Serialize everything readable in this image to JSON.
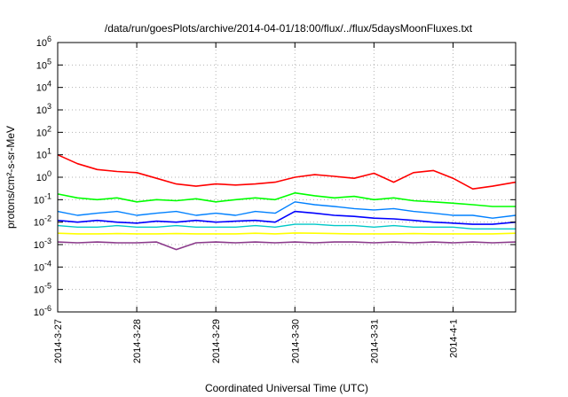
{
  "chart_data": {
    "type": "line",
    "title": "/data/run/goesPlots/archive/2014-04-01/18:00/flux/../flux/5daysMoonFluxes.txt",
    "xlabel": "Coordinated Universal Time (UTC)",
    "ylabel": "protons/cm²-s-sr-MeV",
    "yscale": "log",
    "ylim": [
      1e-06,
      1000000.0
    ],
    "xlim": [
      "2014-03-27T00:00",
      "2014-04-01T19:00"
    ],
    "grid": true,
    "legend": "none",
    "x_ticks": [
      "2014-3-27",
      "2014-3-28",
      "2014-3-29",
      "2014-3-30",
      "2014-3-31",
      "2014-4-1"
    ],
    "y_ticks": [
      {
        "base": "10",
        "exp": "-6"
      },
      {
        "base": "10",
        "exp": "-5"
      },
      {
        "base": "10",
        "exp": "-4"
      },
      {
        "base": "10",
        "exp": "-3"
      },
      {
        "base": "10",
        "exp": "-2"
      },
      {
        "base": "10",
        "exp": "-1"
      },
      {
        "base": "10",
        "exp": "0"
      },
      {
        "base": "10",
        "exp": "1"
      },
      {
        "base": "10",
        "exp": "2"
      },
      {
        "base": "10",
        "exp": "3"
      },
      {
        "base": "10",
        "exp": "4"
      },
      {
        "base": "10",
        "exp": "5"
      },
      {
        "base": "10",
        "exp": "6"
      }
    ],
    "series": [
      {
        "color": "#ff0000",
        "width": 1.6,
        "x": [
          "2014-03-27T00:00",
          "2014-03-27T06:00",
          "2014-03-27T12:00",
          "2014-03-27T18:00",
          "2014-03-28T00:00",
          "2014-03-28T06:00",
          "2014-03-28T12:00",
          "2014-03-28T18:00",
          "2014-03-29T00:00",
          "2014-03-29T06:00",
          "2014-03-29T12:00",
          "2014-03-29T18:00",
          "2014-03-30T00:00",
          "2014-03-30T06:00",
          "2014-03-30T12:00",
          "2014-03-30T18:00",
          "2014-03-31T00:00",
          "2014-03-31T06:00",
          "2014-03-31T12:00",
          "2014-03-31T18:00",
          "2014-04-01T00:00",
          "2014-04-01T06:00",
          "2014-04-01T12:00",
          "2014-04-01T19:00"
        ],
        "y": [
          10,
          4,
          2.2,
          1.8,
          1.6,
          0.9,
          0.5,
          0.4,
          0.5,
          0.45,
          0.5,
          0.6,
          1.0,
          1.3,
          1.1,
          0.9,
          1.5,
          0.6,
          1.6,
          2.0,
          0.9,
          0.3,
          0.4,
          0.6
        ]
      },
      {
        "color": "#00ff00",
        "width": 1.6,
        "x": [
          "2014-03-27T00:00",
          "2014-03-27T06:00",
          "2014-03-27T12:00",
          "2014-03-27T18:00",
          "2014-03-28T00:00",
          "2014-03-28T06:00",
          "2014-03-28T12:00",
          "2014-03-28T18:00",
          "2014-03-29T00:00",
          "2014-03-29T06:00",
          "2014-03-29T12:00",
          "2014-03-29T18:00",
          "2014-03-30T00:00",
          "2014-03-30T06:00",
          "2014-03-30T12:00",
          "2014-03-30T18:00",
          "2014-03-31T00:00",
          "2014-03-31T06:00",
          "2014-03-31T12:00",
          "2014-03-31T18:00",
          "2014-04-01T00:00",
          "2014-04-01T06:00",
          "2014-04-01T12:00",
          "2014-04-01T19:00"
        ],
        "y": [
          0.18,
          0.12,
          0.1,
          0.12,
          0.08,
          0.1,
          0.09,
          0.11,
          0.08,
          0.1,
          0.12,
          0.1,
          0.2,
          0.15,
          0.12,
          0.14,
          0.1,
          0.12,
          0.09,
          0.08,
          0.07,
          0.06,
          0.05,
          0.05
        ]
      },
      {
        "color": "#0080ff",
        "width": 1.4,
        "x": [
          "2014-03-27T00:00",
          "2014-03-27T06:00",
          "2014-03-27T12:00",
          "2014-03-27T18:00",
          "2014-03-28T00:00",
          "2014-03-28T06:00",
          "2014-03-28T12:00",
          "2014-03-28T18:00",
          "2014-03-29T00:00",
          "2014-03-29T06:00",
          "2014-03-29T12:00",
          "2014-03-29T18:00",
          "2014-03-30T00:00",
          "2014-03-30T06:00",
          "2014-03-30T12:00",
          "2014-03-30T18:00",
          "2014-03-31T00:00",
          "2014-03-31T06:00",
          "2014-03-31T12:00",
          "2014-03-31T18:00",
          "2014-04-01T00:00",
          "2014-04-01T06:00",
          "2014-04-01T12:00",
          "2014-04-01T19:00"
        ],
        "y": [
          0.03,
          0.02,
          0.025,
          0.03,
          0.02,
          0.025,
          0.03,
          0.02,
          0.025,
          0.02,
          0.03,
          0.025,
          0.08,
          0.06,
          0.05,
          0.04,
          0.035,
          0.04,
          0.03,
          0.025,
          0.02,
          0.02,
          0.015,
          0.02
        ]
      },
      {
        "color": "#0000ff",
        "width": 1.6,
        "x": [
          "2014-03-27T00:00",
          "2014-03-27T06:00",
          "2014-03-27T12:00",
          "2014-03-27T18:00",
          "2014-03-28T00:00",
          "2014-03-28T06:00",
          "2014-03-28T12:00",
          "2014-03-28T18:00",
          "2014-03-29T00:00",
          "2014-03-29T06:00",
          "2014-03-29T12:00",
          "2014-03-29T18:00",
          "2014-03-30T00:00",
          "2014-03-30T06:00",
          "2014-03-30T12:00",
          "2014-03-30T18:00",
          "2014-03-31T00:00",
          "2014-03-31T06:00",
          "2014-03-31T12:00",
          "2014-03-31T18:00",
          "2014-04-01T00:00",
          "2014-04-01T06:00",
          "2014-04-01T12:00",
          "2014-04-01T19:00"
        ],
        "y": [
          0.012,
          0.01,
          0.012,
          0.01,
          0.009,
          0.011,
          0.01,
          0.012,
          0.01,
          0.011,
          0.012,
          0.01,
          0.03,
          0.025,
          0.02,
          0.018,
          0.015,
          0.014,
          0.012,
          0.01,
          0.009,
          0.008,
          0.008,
          0.01
        ]
      },
      {
        "color": "#00c8c8",
        "width": 1.4,
        "x": [
          "2014-03-27T00:00",
          "2014-03-27T06:00",
          "2014-03-27T12:00",
          "2014-03-27T18:00",
          "2014-03-28T00:00",
          "2014-03-28T06:00",
          "2014-03-28T12:00",
          "2014-03-28T18:00",
          "2014-03-29T00:00",
          "2014-03-29T06:00",
          "2014-03-29T12:00",
          "2014-03-29T18:00",
          "2014-03-30T00:00",
          "2014-03-30T06:00",
          "2014-03-30T12:00",
          "2014-03-30T18:00",
          "2014-03-31T00:00",
          "2014-03-31T06:00",
          "2014-03-31T12:00",
          "2014-03-31T18:00",
          "2014-04-01T00:00",
          "2014-04-01T06:00",
          "2014-04-01T12:00",
          "2014-04-01T19:00"
        ],
        "y": [
          0.007,
          0.006,
          0.006,
          0.007,
          0.006,
          0.006,
          0.007,
          0.006,
          0.006,
          0.006,
          0.007,
          0.006,
          0.008,
          0.008,
          0.007,
          0.007,
          0.006,
          0.007,
          0.006,
          0.006,
          0.006,
          0.005,
          0.005,
          0.005
        ]
      },
      {
        "color": "#ffff00",
        "width": 1.6,
        "x": [
          "2014-03-27T00:00",
          "2014-03-27T06:00",
          "2014-03-27T12:00",
          "2014-03-27T18:00",
          "2014-03-28T00:00",
          "2014-03-28T06:00",
          "2014-03-28T12:00",
          "2014-03-28T18:00",
          "2014-03-29T00:00",
          "2014-03-29T06:00",
          "2014-03-29T12:00",
          "2014-03-29T18:00",
          "2014-03-30T00:00",
          "2014-03-30T06:00",
          "2014-03-30T12:00",
          "2014-03-30T18:00",
          "2014-03-31T00:00",
          "2014-03-31T06:00",
          "2014-03-31T12:00",
          "2014-03-31T18:00",
          "2014-04-01T00:00",
          "2014-04-01T06:00",
          "2014-04-01T12:00",
          "2014-04-01T19:00"
        ],
        "y": [
          0.0032,
          0.003,
          0.003,
          0.0031,
          0.003,
          0.003,
          0.0031,
          0.003,
          0.003,
          0.003,
          0.0032,
          0.003,
          0.0033,
          0.0032,
          0.0031,
          0.003,
          0.003,
          0.003,
          0.0031,
          0.003,
          0.003,
          0.003,
          0.003,
          0.0032
        ]
      },
      {
        "color": "#8b3a8b",
        "width": 1.6,
        "x": [
          "2014-03-27T00:00",
          "2014-03-27T06:00",
          "2014-03-27T12:00",
          "2014-03-27T18:00",
          "2014-03-28T00:00",
          "2014-03-28T06:00",
          "2014-03-28T12:00",
          "2014-03-28T18:00",
          "2014-03-29T00:00",
          "2014-03-29T06:00",
          "2014-03-29T12:00",
          "2014-03-29T18:00",
          "2014-03-30T00:00",
          "2014-03-30T06:00",
          "2014-03-30T12:00",
          "2014-03-30T18:00",
          "2014-03-31T00:00",
          "2014-03-31T06:00",
          "2014-03-31T12:00",
          "2014-03-31T18:00",
          "2014-04-01T00:00",
          "2014-04-01T06:00",
          "2014-04-01T12:00",
          "2014-04-01T19:00"
        ],
        "y": [
          0.0013,
          0.0012,
          0.0013,
          0.0012,
          0.0012,
          0.0013,
          0.0006,
          0.0012,
          0.0013,
          0.0012,
          0.0013,
          0.0012,
          0.0013,
          0.0012,
          0.0013,
          0.0013,
          0.0012,
          0.0013,
          0.0012,
          0.0013,
          0.0012,
          0.0013,
          0.0012,
          0.0013
        ]
      }
    ]
  }
}
